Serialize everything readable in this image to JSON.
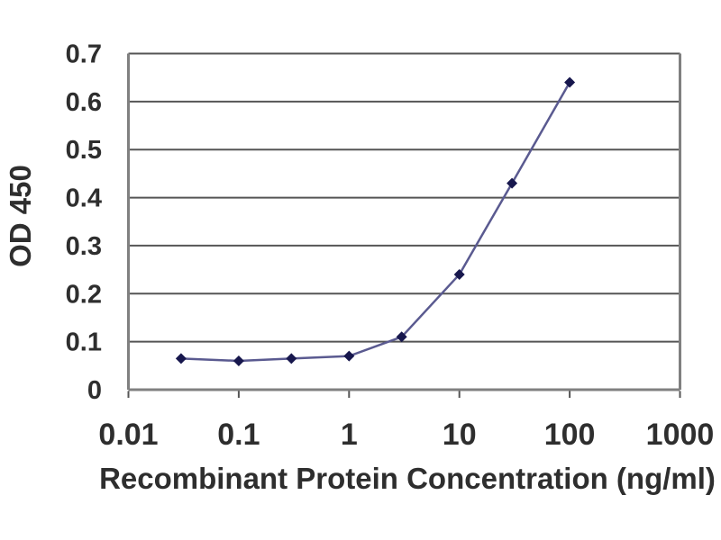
{
  "chart_data": {
    "type": "line",
    "title": "",
    "xlabel": "Recombinant Protein Concentration (ng/ml)",
    "ylabel": "OD 450",
    "x_scale": "log",
    "xlim": [
      0.01,
      1000
    ],
    "ylim": [
      0,
      0.7
    ],
    "x_ticks": [
      "0.01",
      "0.1",
      "1",
      "10",
      "100",
      "1000"
    ],
    "x_tick_values": [
      0.01,
      0.1,
      1,
      10,
      100,
      1000
    ],
    "y_ticks": [
      "0",
      "0.1",
      "0.2",
      "0.3",
      "0.4",
      "0.5",
      "0.6",
      "0.7"
    ],
    "y_tick_values": [
      0,
      0.1,
      0.2,
      0.3,
      0.4,
      0.5,
      0.6,
      0.7
    ],
    "grid": "horizontal",
    "legend": "none",
    "series": [
      {
        "name": "OD 450",
        "marker": "diamond",
        "x": [
          0.03,
          0.1,
          0.3,
          1,
          3,
          10,
          30,
          100
        ],
        "y": [
          0.065,
          0.06,
          0.065,
          0.07,
          0.11,
          0.24,
          0.43,
          0.64
        ]
      }
    ]
  },
  "colors": {
    "line": "#5a5a90",
    "marker": "#17174d",
    "gridline": "#555555",
    "axis": "#808080",
    "text": "#2e2e2e",
    "background": "#ffffff"
  }
}
